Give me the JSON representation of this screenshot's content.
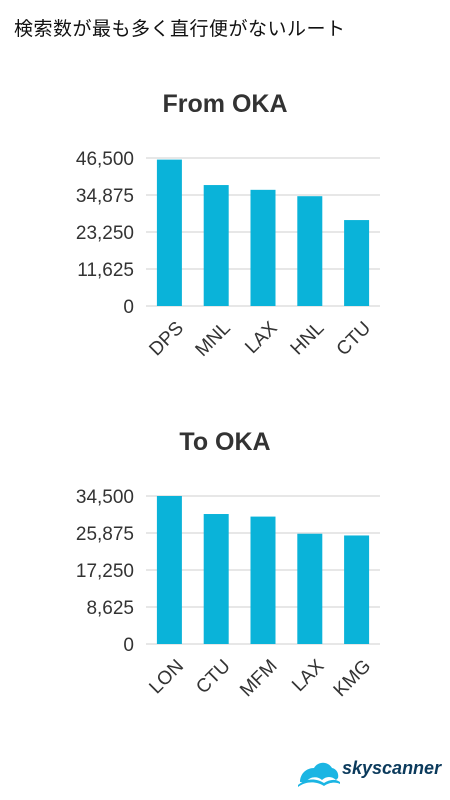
{
  "header": {
    "title": "検索数が最も多く直行便がないルート"
  },
  "colors": {
    "bar": "#0ab3d9",
    "grid": "#cfcfcf",
    "text": "#333333",
    "logo_icon": "#1bb5e3",
    "logo_text": "#0b3a5c"
  },
  "logo": {
    "text": "skyscanner",
    "icon": "cloud-wave-icon"
  },
  "chart_data": [
    {
      "type": "bar",
      "title": "From OKA",
      "categories": [
        "DPS",
        "MNL",
        "LAX",
        "HNL",
        "CTU"
      ],
      "values": [
        46000,
        38000,
        36500,
        34500,
        27000
      ],
      "yticks": [
        "0",
        "11,625",
        "23,250",
        "34,875",
        "46,500"
      ],
      "ylim": [
        0,
        46500
      ],
      "grid": true
    },
    {
      "type": "bar",
      "title": "To OKA",
      "categories": [
        "LON",
        "CTU",
        "MFM",
        "LAX",
        "KMG"
      ],
      "values": [
        34500,
        30300,
        29700,
        25700,
        25300
      ],
      "yticks": [
        "0",
        "8,625",
        "17,250",
        "25,875",
        "34,500"
      ],
      "ylim": [
        0,
        34500
      ],
      "grid": true
    }
  ]
}
